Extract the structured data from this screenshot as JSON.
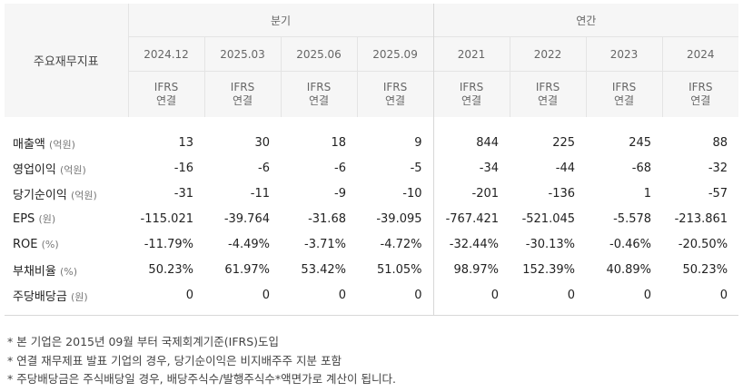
{
  "table": {
    "corner_label": "주요재무지표",
    "groups": {
      "quarterly": "분기",
      "annual": "연간"
    },
    "periods": [
      "2024.12",
      "2025.03",
      "2025.06",
      "2025.09",
      "2021",
      "2022",
      "2023",
      "2024"
    ],
    "basis_line1": "IFRS",
    "basis_line2": "연결",
    "rows": [
      {
        "label": "매출액",
        "unit": "(억원)",
        "values": [
          "13",
          "30",
          "18",
          "9",
          "844",
          "225",
          "245",
          "88"
        ]
      },
      {
        "label": "영업이익",
        "unit": "(억원)",
        "values": [
          "-16",
          "-6",
          "-6",
          "-5",
          "-34",
          "-44",
          "-68",
          "-32"
        ]
      },
      {
        "label": "당기순이익",
        "unit": "(억원)",
        "values": [
          "-31",
          "-11",
          "-9",
          "-10",
          "-201",
          "-136",
          "1",
          "-57"
        ]
      },
      {
        "label": "EPS",
        "unit": "(원)",
        "values": [
          "-115.021",
          "-39.764",
          "-31.68",
          "-39.095",
          "-767.421",
          "-521.045",
          "-5.578",
          "-213.861"
        ]
      },
      {
        "label": "ROE",
        "unit": "(%)",
        "values": [
          "-11.79%",
          "-4.49%",
          "-3.71%",
          "-4.72%",
          "-32.44%",
          "-30.13%",
          "-0.46%",
          "-20.50%"
        ]
      },
      {
        "label": "부채비율",
        "unit": "(%)",
        "values": [
          "50.23%",
          "61.97%",
          "53.42%",
          "51.05%",
          "98.97%",
          "152.39%",
          "40.89%",
          "50.23%"
        ]
      },
      {
        "label": "주당배당금",
        "unit": "(원)",
        "values": [
          "0",
          "0",
          "0",
          "0",
          "0",
          "0",
          "0",
          "0"
        ]
      }
    ]
  },
  "notes": [
    "* 본 기업은 2015년 09월 부터 국제회계기준(IFRS)도입",
    "* 연결 재무제표 발표 기업의 경우, 당기순이익은 비지배주주 지분 포함",
    "* 주당배당금은 주식배당일 경우, 배당주식수/발행주식수*액면가로 계산이 됩니다."
  ]
}
